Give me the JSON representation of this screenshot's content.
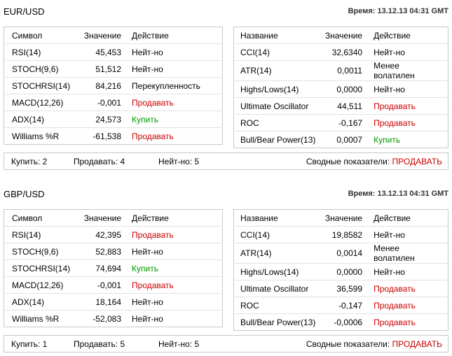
{
  "sections": [
    {
      "pair": "EUR/USD",
      "time": "Время: 13.12.13 04:31 GMT",
      "left": {
        "header": [
          "Символ",
          "Значение",
          "Действие"
        ],
        "rows": [
          {
            "name": "RSI(14)",
            "value": "45,453",
            "action": "Нейт-но",
            "color": "#000000"
          },
          {
            "name": "STOCH(9,6)",
            "value": "51,512",
            "action": "Нейт-но",
            "color": "#000000"
          },
          {
            "name": "STOCHRSI(14)",
            "value": "84,216",
            "action": "Перекупленность",
            "color": "#000000"
          },
          {
            "name": "MACD(12,26)",
            "value": "-0,001",
            "action": "Продавать",
            "color": "#cc0000"
          },
          {
            "name": "ADX(14)",
            "value": "24,573",
            "action": "Купить",
            "color": "#009900"
          },
          {
            "name": "Williams %R",
            "value": "-61,538",
            "action": "Продавать",
            "color": "#cc0000"
          }
        ]
      },
      "right": {
        "header": [
          "Название",
          "Значение",
          "Действие"
        ],
        "rows": [
          {
            "name": "CCI(14)",
            "value": "32,6340",
            "action": "Нейт-но",
            "color": "#000000"
          },
          {
            "name": "ATR(14)",
            "value": "0,0011",
            "action": "Менее волатилен",
            "color": "#000000"
          },
          {
            "name": "Highs/Lows(14)",
            "value": "0,0000",
            "action": "Нейт-но",
            "color": "#000000"
          },
          {
            "name": "Ultimate Oscillator",
            "value": "44,511",
            "action": "Продавать",
            "color": "#cc0000"
          },
          {
            "name": "ROC",
            "value": "-0,167",
            "action": "Продавать",
            "color": "#cc0000"
          },
          {
            "name": "Bull/Bear Power(13)",
            "value": "0,0007",
            "action": "Купить",
            "color": "#009900"
          }
        ]
      },
      "summary": {
        "buy": "Купить: 2",
        "sell": "Продавать: 4",
        "neutral": "Нейт-но: 5",
        "overall_label": "Сводные показатели:",
        "overall": "ПРОДАВАТЬ",
        "overall_color": "#cc0000"
      }
    },
    {
      "pair": "GBP/USD",
      "time": "Время: 13.12.13 04:31 GMT",
      "left": {
        "header": [
          "Символ",
          "Значение",
          "Действие"
        ],
        "rows": [
          {
            "name": "RSI(14)",
            "value": "42,395",
            "action": "Продавать",
            "color": "#cc0000"
          },
          {
            "name": "STOCH(9,6)",
            "value": "52,883",
            "action": "Нейт-но",
            "color": "#000000"
          },
          {
            "name": "STOCHRSI(14)",
            "value": "74,694",
            "action": "Купить",
            "color": "#009900"
          },
          {
            "name": "MACD(12,26)",
            "value": "-0,001",
            "action": "Продавать",
            "color": "#cc0000"
          },
          {
            "name": "ADX(14)",
            "value": "18,164",
            "action": "Нейт-но",
            "color": "#000000"
          },
          {
            "name": "Williams %R",
            "value": "-52,083",
            "action": "Нейт-но",
            "color": "#000000"
          }
        ]
      },
      "right": {
        "header": [
          "Название",
          "Значение",
          "Действие"
        ],
        "rows": [
          {
            "name": "CCI(14)",
            "value": "19,8582",
            "action": "Нейт-но",
            "color": "#000000"
          },
          {
            "name": "ATR(14)",
            "value": "0,0014",
            "action": "Менее волатилен",
            "color": "#000000"
          },
          {
            "name": "Highs/Lows(14)",
            "value": "0,0000",
            "action": "Нейт-но",
            "color": "#000000"
          },
          {
            "name": "Ultimate Oscillator",
            "value": "36,599",
            "action": "Продавать",
            "color": "#cc0000"
          },
          {
            "name": "ROC",
            "value": "-0,147",
            "action": "Продавать",
            "color": "#cc0000"
          },
          {
            "name": "Bull/Bear Power(13)",
            "value": "-0,0006",
            "action": "Продавать",
            "color": "#cc0000"
          }
        ]
      },
      "summary": {
        "buy": "Купить: 1",
        "sell": "Продавать: 5",
        "neutral": "Нейт-но: 5",
        "overall_label": "Сводные показатели:",
        "overall": "ПРОДАВАТЬ",
        "overall_color": "#cc0000"
      }
    }
  ]
}
